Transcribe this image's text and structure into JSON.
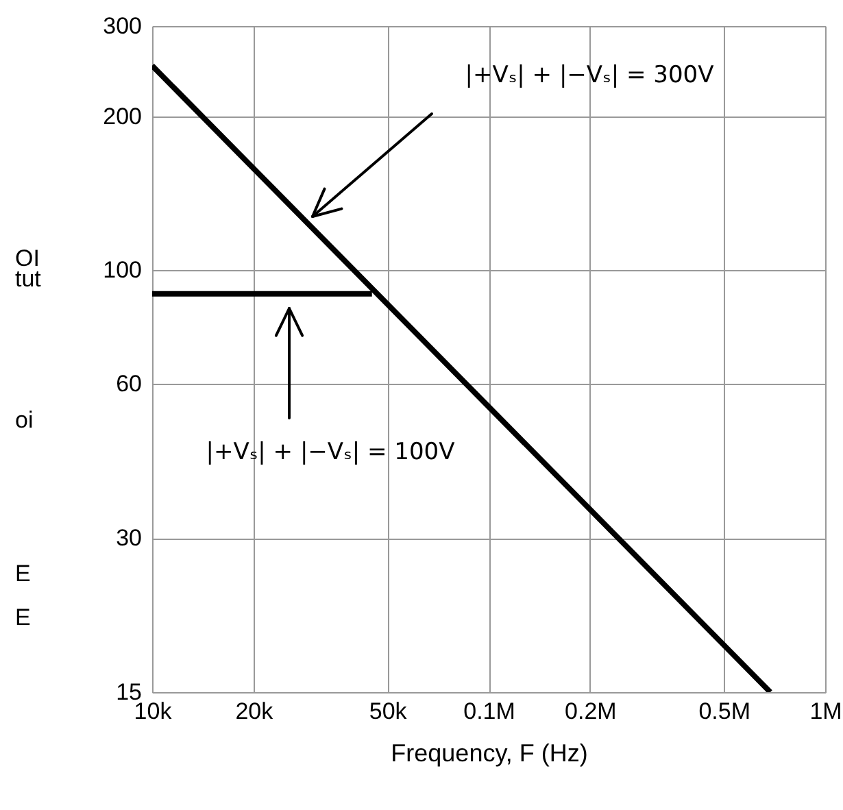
{
  "chart_data": {
    "type": "line",
    "xlabel": "Frequency, F (Hz)",
    "log": "xy",
    "grid": true,
    "line_style": "solid",
    "marker": "none",
    "xlim": [
      10000,
      1000000
    ],
    "xticks": [
      {
        "value": 10000,
        "label": "10k"
      },
      {
        "value": 20000,
        "label": "20k"
      },
      {
        "value": 50000,
        "label": "50k"
      },
      {
        "value": 100000,
        "label": "0.1M"
      },
      {
        "value": 200000,
        "label": "0.2M"
      },
      {
        "value": 500000,
        "label": "0.5M"
      },
      {
        "value": 1000000,
        "label": "1M"
      }
    ],
    "ylim": [
      15,
      300
    ],
    "yticks": [
      15,
      30,
      60,
      100,
      200,
      300
    ],
    "series": [
      {
        "color": "#000000",
        "x": [
          10000,
          687000
        ],
        "values": [
          251,
          15
        ]
      },
      {
        "color": "#000000",
        "x": [
          10000,
          45000
        ],
        "values": [
          90,
          90
        ]
      }
    ],
    "annotations": [
      "|+Vₛ| + |−Vₛ| = 300V",
      "|+Vₛ| + |−Vₛ| = 100V",
      "OI",
      "tut",
      "oi",
      "E",
      "E"
    ]
  }
}
